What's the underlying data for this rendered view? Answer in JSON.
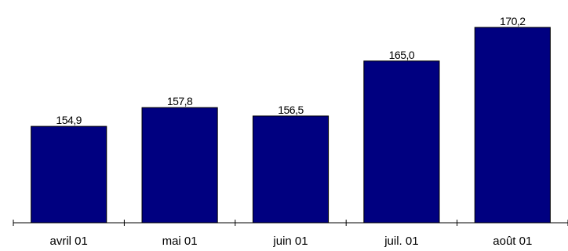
{
  "chart_data": {
    "type": "bar",
    "categories": [
      "avril 01",
      "mai 01",
      "juin 01",
      "juil. 01",
      "août 01"
    ],
    "values": [
      154.9,
      157.8,
      156.5,
      165.0,
      170.2
    ],
    "value_labels": [
      "154,9",
      "157,8",
      "156,5",
      "165,0",
      "170,2"
    ],
    "title": "",
    "xlabel": "",
    "ylabel": "",
    "ylim": [
      140,
      171.4
    ],
    "grid": false,
    "legend": "none",
    "bar_color": "#000080"
  }
}
